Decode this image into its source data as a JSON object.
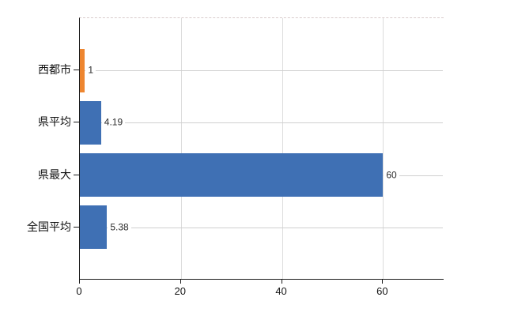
{
  "chart_data": {
    "type": "bar",
    "orientation": "horizontal",
    "title": "",
    "xlabel": "",
    "ylabel": "",
    "categories": [
      "西都市",
      "県平均",
      "県最大",
      "全国平均"
    ],
    "values": [
      1,
      4.19,
      60,
      5.38
    ],
    "value_labels": [
      "1",
      "4.19",
      "60",
      "5.38"
    ],
    "bar_colors": [
      "#EE8630",
      "#3F70B4",
      "#3F70B4",
      "#3F70B4"
    ],
    "xlim": [
      0,
      72
    ],
    "x_ticks": [
      0,
      20,
      40,
      60
    ],
    "grid": "on",
    "legend": "none"
  },
  "colors": {
    "background": "#ffffff",
    "axis_line": "#1b1b1b",
    "vertical_gridline": "#dcdcdc",
    "horizontal_gridline": "#cfcfcf",
    "top_border": "#d8cbcb",
    "category_text": "#111111",
    "value_text": "#2b2b2b",
    "tick_text": "#141414",
    "accent_orange": "#EE8630",
    "accent_blue": "#3F70B4"
  }
}
